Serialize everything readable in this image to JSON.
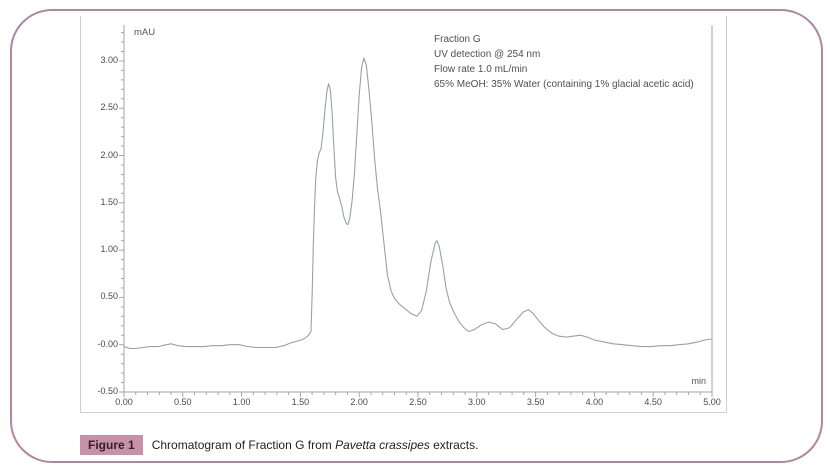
{
  "page": {
    "border_color": "#b285a5",
    "background": "#ffffff"
  },
  "chart_data": {
    "type": "line",
    "title": "",
    "xlabel": "min",
    "ylabel": "mAU",
    "xlim": [
      0.0,
      5.0
    ],
    "ylim": [
      -0.5,
      3.38
    ],
    "grid": false,
    "legend": "none",
    "line_color": "#9aa0a3",
    "axis_color": "#a6a6a6",
    "frame_color": "#cfcfcf",
    "x_minor_step": 0.1,
    "y_minor_step": 0.1,
    "x_ticks": [
      {
        "value": 0.0,
        "label": "0.00"
      },
      {
        "value": 0.5,
        "label": "0.50"
      },
      {
        "value": 1.0,
        "label": "1.00"
      },
      {
        "value": 1.5,
        "label": "1.50"
      },
      {
        "value": 2.0,
        "label": "2.00"
      },
      {
        "value": 2.5,
        "label": "2.50"
      },
      {
        "value": 3.0,
        "label": "3.00"
      },
      {
        "value": 3.5,
        "label": "3.50"
      },
      {
        "value": 4.0,
        "label": "4.00"
      },
      {
        "value": 4.5,
        "label": "4.50"
      },
      {
        "value": 5.0,
        "label": "5.00"
      }
    ],
    "y_ticks": [
      {
        "value": 3.0,
        "label": "3.00"
      },
      {
        "value": 2.5,
        "label": "2.50"
      },
      {
        "value": 2.0,
        "label": "2.00"
      },
      {
        "value": 1.5,
        "label": "1.50"
      },
      {
        "value": 1.0,
        "label": "1.00"
      },
      {
        "value": 0.5,
        "label": "0.50"
      },
      {
        "value": 0.0,
        "label": "-0.00"
      },
      {
        "value": -0.5,
        "label": "-0.50"
      }
    ],
    "annotations": [
      "Fraction G",
      "UV detection  @ 254 nm",
      "Flow rate 1.0 mL/min",
      "65% MeOH: 35% Water (containing 1% glacial acetic acid)"
    ],
    "peaks_mau": {
      "peak1": {
        "t_min": 1.74,
        "mau": 2.76
      },
      "peak2": {
        "t_min": 2.04,
        "mau": 3.03
      },
      "peak3": {
        "t_min": 2.66,
        "mau": 1.1
      },
      "peak4": {
        "t_min": 3.44,
        "mau": 0.37
      }
    },
    "points": [
      [
        0.0,
        -0.02
      ],
      [
        0.05,
        -0.04
      ],
      [
        0.1,
        -0.04
      ],
      [
        0.16,
        -0.03
      ],
      [
        0.22,
        -0.02
      ],
      [
        0.29,
        -0.02
      ],
      [
        0.36,
        0.0
      ],
      [
        0.4,
        0.01
      ],
      [
        0.46,
        -0.01
      ],
      [
        0.53,
        -0.02
      ],
      [
        0.6,
        -0.02
      ],
      [
        0.68,
        -0.02
      ],
      [
        0.75,
        -0.01
      ],
      [
        0.83,
        -0.01
      ],
      [
        0.9,
        0.0
      ],
      [
        0.98,
        0.0
      ],
      [
        1.05,
        -0.02
      ],
      [
        1.13,
        -0.03
      ],
      [
        1.21,
        -0.03
      ],
      [
        1.29,
        -0.03
      ],
      [
        1.36,
        -0.01
      ],
      [
        1.42,
        0.02
      ],
      [
        1.48,
        0.04
      ],
      [
        1.53,
        0.06
      ],
      [
        1.57,
        0.1
      ],
      [
        1.59,
        0.14
      ],
      [
        1.6,
        0.55
      ],
      [
        1.61,
        1.05
      ],
      [
        1.62,
        1.45
      ],
      [
        1.63,
        1.75
      ],
      [
        1.645,
        1.95
      ],
      [
        1.66,
        2.03
      ],
      [
        1.675,
        2.07
      ],
      [
        1.69,
        2.22
      ],
      [
        1.71,
        2.5
      ],
      [
        1.725,
        2.68
      ],
      [
        1.74,
        2.76
      ],
      [
        1.755,
        2.69
      ],
      [
        1.77,
        2.44
      ],
      [
        1.785,
        2.08
      ],
      [
        1.8,
        1.76
      ],
      [
        1.815,
        1.62
      ],
      [
        1.83,
        1.56
      ],
      [
        1.85,
        1.47
      ],
      [
        1.87,
        1.35
      ],
      [
        1.89,
        1.28
      ],
      [
        1.905,
        1.27
      ],
      [
        1.92,
        1.34
      ],
      [
        1.94,
        1.52
      ],
      [
        1.96,
        1.82
      ],
      [
        1.98,
        2.22
      ],
      [
        2.0,
        2.64
      ],
      [
        2.02,
        2.93
      ],
      [
        2.04,
        3.03
      ],
      [
        2.06,
        2.96
      ],
      [
        2.08,
        2.73
      ],
      [
        2.105,
        2.4
      ],
      [
        2.13,
        1.98
      ],
      [
        2.155,
        1.66
      ],
      [
        2.18,
        1.42
      ],
      [
        2.21,
        1.08
      ],
      [
        2.24,
        0.74
      ],
      [
        2.27,
        0.57
      ],
      [
        2.3,
        0.49
      ],
      [
        2.34,
        0.43
      ],
      [
        2.39,
        0.38
      ],
      [
        2.44,
        0.33
      ],
      [
        2.49,
        0.3
      ],
      [
        2.53,
        0.36
      ],
      [
        2.57,
        0.56
      ],
      [
        2.61,
        0.88
      ],
      [
        2.645,
        1.07
      ],
      [
        2.66,
        1.1
      ],
      [
        2.68,
        1.04
      ],
      [
        2.71,
        0.84
      ],
      [
        2.74,
        0.59
      ],
      [
        2.77,
        0.44
      ],
      [
        2.81,
        0.33
      ],
      [
        2.85,
        0.24
      ],
      [
        2.89,
        0.18
      ],
      [
        2.93,
        0.14
      ],
      [
        2.98,
        0.16
      ],
      [
        3.04,
        0.21
      ],
      [
        3.1,
        0.24
      ],
      [
        3.16,
        0.22
      ],
      [
        3.22,
        0.16
      ],
      [
        3.28,
        0.18
      ],
      [
        3.34,
        0.27
      ],
      [
        3.4,
        0.35
      ],
      [
        3.44,
        0.37
      ],
      [
        3.48,
        0.33
      ],
      [
        3.53,
        0.25
      ],
      [
        3.58,
        0.18
      ],
      [
        3.64,
        0.12
      ],
      [
        3.7,
        0.09
      ],
      [
        3.76,
        0.08
      ],
      [
        3.82,
        0.09
      ],
      [
        3.88,
        0.1
      ],
      [
        3.94,
        0.08
      ],
      [
        4.0,
        0.05
      ],
      [
        4.08,
        0.03
      ],
      [
        4.16,
        0.01
      ],
      [
        4.24,
        0.0
      ],
      [
        4.32,
        -0.01
      ],
      [
        4.4,
        -0.02
      ],
      [
        4.48,
        -0.02
      ],
      [
        4.56,
        -0.01
      ],
      [
        4.64,
        -0.01
      ],
      [
        4.72,
        0.0
      ],
      [
        4.8,
        0.01
      ],
      [
        4.88,
        0.03
      ],
      [
        4.94,
        0.05
      ],
      [
        5.0,
        0.06
      ]
    ]
  },
  "caption": {
    "label": "Figure 1",
    "badge_color": "#c792a7",
    "text_prefix": "Chromatogram of Fraction G from ",
    "text_italic": "Pavetta crassipes",
    "text_suffix": " extracts."
  }
}
